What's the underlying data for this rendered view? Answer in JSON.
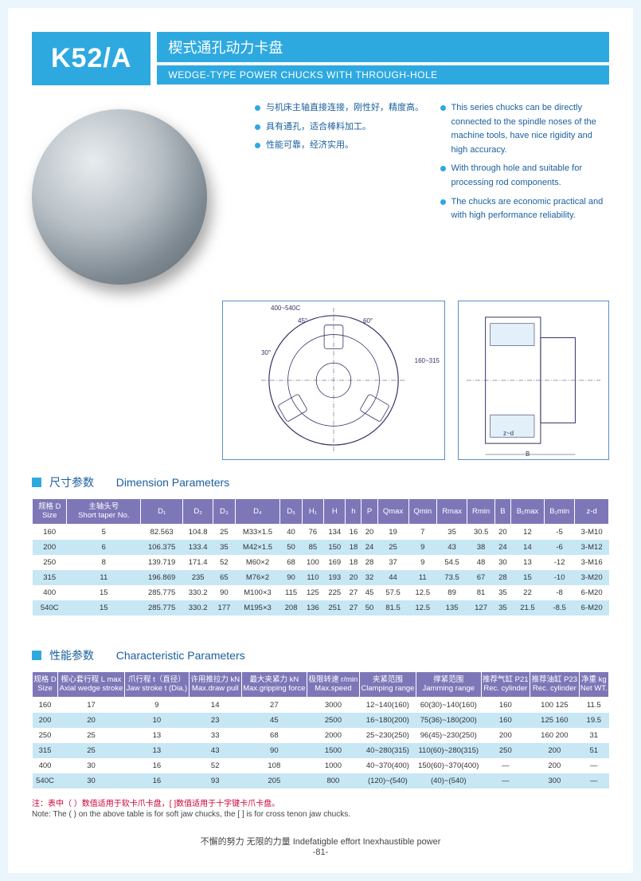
{
  "header": {
    "model": "K52/A",
    "title_cn": "楔式通孔动力卡盘",
    "title_en": "WEDGE-TYPE POWER CHUCKS WITH THROUGH-HOLE"
  },
  "bullets_cn": [
    "与机床主轴直接连接，刚性好，精度高。",
    "具有通孔，适合棒料加工。",
    "性能可靠，经济实用。"
  ],
  "bullets_en": [
    "This series chucks can be directly connected to the spindle noses of the machine tools, have nice rigidity and high accuracy.",
    "With through hole and suitable for processing rod components.",
    "The chucks are economic practical and with high performance reliability."
  ],
  "diagram_labels": {
    "l1": "400~540C",
    "l2": "45°",
    "l3": "60°",
    "l4": "30°",
    "l5": "160~315",
    "l6": "B",
    "l7": "z~d"
  },
  "section1": {
    "cn": "尺寸参数",
    "en": "Dimension Parameters"
  },
  "section2": {
    "cn": "性能参数",
    "en": "Characteristic Parameters"
  },
  "table1": {
    "headers": [
      "规格 D\nSize",
      "主轴头号\nShort taper No.",
      "D₁",
      "D₂",
      "D₃",
      "D₄",
      "D₅",
      "H₁",
      "H",
      "h",
      "P",
      "Qmax",
      "Qmin",
      "Rmax",
      "Rmin",
      "B",
      "B₁max",
      "B₁min",
      "z-d"
    ],
    "rows": [
      [
        "160",
        "5",
        "82.563",
        "104.8",
        "25",
        "M33×1.5",
        "40",
        "76",
        "134",
        "16",
        "20",
        "19",
        "7",
        "35",
        "30.5",
        "20",
        "12",
        "-5",
        "3-M10"
      ],
      [
        "200",
        "6",
        "106.375",
        "133.4",
        "35",
        "M42×1.5",
        "50",
        "85",
        "150",
        "18",
        "24",
        "25",
        "9",
        "43",
        "38",
        "24",
        "14",
        "-6",
        "3-M12"
      ],
      [
        "250",
        "8",
        "139.719",
        "171.4",
        "52",
        "M60×2",
        "68",
        "100",
        "169",
        "18",
        "28",
        "37",
        "9",
        "54.5",
        "48",
        "30",
        "13",
        "-12",
        "3-M16"
      ],
      [
        "315",
        "11",
        "196.869",
        "235",
        "65",
        "M76×2",
        "90",
        "110",
        "193",
        "20",
        "32",
        "44",
        "11",
        "73.5",
        "67",
        "28",
        "15",
        "-10",
        "3-M20"
      ],
      [
        "400",
        "15",
        "285.775",
        "330.2",
        "90",
        "M100×3",
        "115",
        "125",
        "225",
        "27",
        "45",
        "57.5",
        "12.5",
        "89",
        "81",
        "35",
        "22",
        "-8",
        "6-M20"
      ],
      [
        "540C",
        "15",
        "285.775",
        "330.2",
        "177",
        "M195×3",
        "208",
        "136",
        "251",
        "27",
        "50",
        "81.5",
        "12.5",
        "135",
        "127",
        "35",
        "21.5",
        "-8.5",
        "6-M20"
      ]
    ]
  },
  "table2": {
    "headers": [
      "规格 D\nSize",
      "楔心套行程 L max\nAxial wedge stroke",
      "爪行程 t（直径）\nJaw stroke t (Dia.)",
      "许用推拉力 kN\nMax.draw pull",
      "最大夹紧力 kN\nMax.gripping force",
      "极限转速 r/min\nMax.speed",
      "夹紧范围\nClamping range",
      "撑紧范围\nJamming range",
      "推荐气缸 P21\nRec. cylinder",
      "推荐油缸 P23\nRec. cylinder",
      "净重 kg\nNet WT."
    ],
    "rows": [
      [
        "160",
        "17",
        "9",
        "14",
        "27",
        "3000",
        "12~140(160)",
        "60(30)~140(160)",
        "160",
        "100 125",
        "11.5"
      ],
      [
        "200",
        "20",
        "10",
        "23",
        "45",
        "2500",
        "16~180(200)",
        "75(36)~180(200)",
        "160",
        "125 160",
        "19.5"
      ],
      [
        "250",
        "25",
        "13",
        "33",
        "68",
        "2000",
        "25~230(250)",
        "96(45)~230(250)",
        "200",
        "160 200",
        "31"
      ],
      [
        "315",
        "25",
        "13",
        "43",
        "90",
        "1500",
        "40~280(315)",
        "110(60)~280(315)",
        "250",
        "200",
        "51"
      ],
      [
        "400",
        "30",
        "16",
        "52",
        "108",
        "1000",
        "40~370(400)",
        "150(60)~370(400)",
        "—",
        "200",
        "—"
      ],
      [
        "540C",
        "30",
        "16",
        "93",
        "205",
        "800",
        "(120)~(540)",
        "(40)~(540)",
        "—",
        "300",
        "—"
      ]
    ]
  },
  "note_cn": "注：表中（ ）数值适用于软卡爪卡盘，[ ]数值适用于十字键卡爪卡盘。",
  "note_en": "Note: The ( ) on the above table is for soft jaw chucks, the [ ] is for cross tenon jaw chucks.",
  "footer": {
    "line1": "不懈的努力  无限的力量  Indefatigble effort  Inexhaustible power",
    "line2": "-81-"
  }
}
